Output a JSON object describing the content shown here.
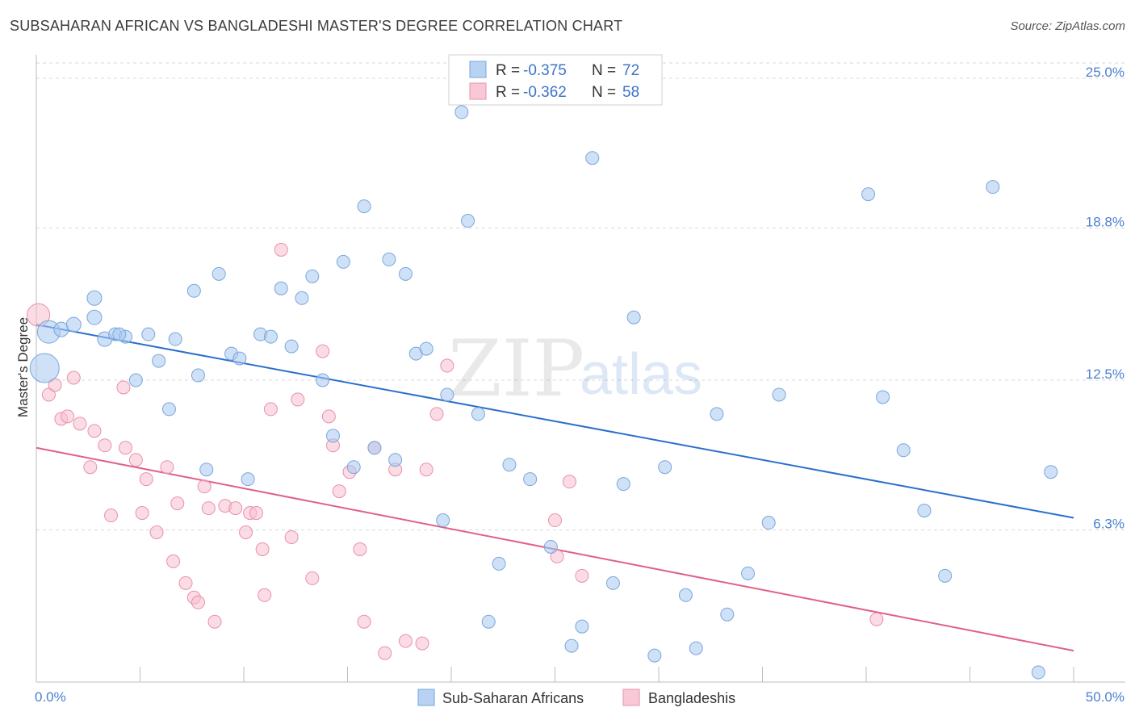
{
  "title": "SUBSAHARAN AFRICAN VS BANGLADESHI MASTER'S DEGREE CORRELATION CHART",
  "source": "Source: ZipAtlas.com",
  "watermark": {
    "zip": "ZIP",
    "atlas": "atlas"
  },
  "legend_top": {
    "rows": [
      {
        "r_label": "R = ",
        "r_value": "-0.375",
        "n_label": "N = ",
        "n_value": "72",
        "color": "#a8c8f0"
      },
      {
        "r_label": "R = ",
        "r_value": "-0.362",
        "n_label": "N = ",
        "n_value": "58",
        "color": "#f8b8cc"
      }
    ]
  },
  "legend_bottom": [
    {
      "label": "Sub-Saharan Africans",
      "color": "#a8c8f0"
    },
    {
      "label": "Bangladeshis",
      "color": "#f8b8cc"
    }
  ],
  "colors": {
    "blue_fill": "#a8c8f0",
    "blue_stroke": "#7aa6dc",
    "blue_line": "#2a6fcc",
    "pink_fill": "#f8c0d0",
    "pink_stroke": "#e890ac",
    "pink_line": "#e0608a",
    "grid": "#d8d8d8",
    "tick_text": "#4a7fd0"
  },
  "chart_data": {
    "type": "scatter",
    "ylabel": "Master's Degree",
    "x_tick_labels": [
      "0.0%",
      "50.0%"
    ],
    "y_tick_labels": [
      "25.0%",
      "18.8%",
      "12.5%",
      "6.3%"
    ],
    "y_ticks": [
      25.0,
      18.8,
      12.5,
      6.3
    ],
    "xlim": [
      0,
      50
    ],
    "ylim": [
      0,
      26
    ],
    "grid": "horizontal dashed",
    "series": [
      {
        "name": "Sub-Saharan Africans",
        "trend": {
          "x": [
            0,
            50
          ],
          "y": [
            14.8,
            6.8
          ]
        },
        "points": [
          [
            0.4,
            13.0,
            18
          ],
          [
            0.6,
            14.5,
            14
          ],
          [
            1.2,
            14.6,
            9
          ],
          [
            1.8,
            14.8,
            9
          ],
          [
            2.8,
            15.1,
            9
          ],
          [
            2.8,
            15.9,
            9
          ],
          [
            3.3,
            14.2,
            9
          ],
          [
            3.8,
            14.4,
            8
          ],
          [
            4.3,
            14.3,
            8
          ],
          [
            4.8,
            12.5,
            8
          ],
          [
            5.4,
            14.4,
            8
          ],
          [
            5.9,
            13.3,
            8
          ],
          [
            6.4,
            11.3,
            8
          ],
          [
            6.7,
            14.2,
            8
          ],
          [
            7.6,
            16.2,
            8
          ],
          [
            7.8,
            12.7,
            8
          ],
          [
            8.2,
            8.8,
            8
          ],
          [
            8.8,
            16.9,
            8
          ],
          [
            9.4,
            13.6,
            8
          ],
          [
            9.8,
            13.4,
            8
          ],
          [
            10.2,
            8.4,
            8
          ],
          [
            10.8,
            14.4,
            8
          ],
          [
            11.3,
            14.3,
            8
          ],
          [
            11.8,
            16.3,
            8
          ],
          [
            12.3,
            13.9,
            8
          ],
          [
            12.8,
            15.9,
            8
          ],
          [
            13.3,
            16.8,
            8
          ],
          [
            13.8,
            12.5,
            8
          ],
          [
            14.3,
            10.2,
            8
          ],
          [
            14.8,
            17.4,
            8
          ],
          [
            15.3,
            8.9,
            8
          ],
          [
            15.8,
            19.7,
            8
          ],
          [
            16.3,
            9.7,
            8
          ],
          [
            17.0,
            17.5,
            8
          ],
          [
            17.3,
            9.2,
            8
          ],
          [
            17.8,
            16.9,
            8
          ],
          [
            18.3,
            13.6,
            8
          ],
          [
            18.8,
            13.8,
            8
          ],
          [
            19.6,
            6.7,
            8
          ],
          [
            19.8,
            11.9,
            8
          ],
          [
            20.5,
            23.6,
            8
          ],
          [
            20.8,
            19.1,
            8
          ],
          [
            21.3,
            11.1,
            8
          ],
          [
            21.8,
            2.5,
            8
          ],
          [
            22.3,
            4.9,
            8
          ],
          [
            22.8,
            9.0,
            8
          ],
          [
            23.8,
            8.4,
            8
          ],
          [
            24.8,
            5.6,
            8
          ],
          [
            25.8,
            1.5,
            8
          ],
          [
            26.3,
            2.3,
            8
          ],
          [
            26.8,
            21.7,
            8
          ],
          [
            27.8,
            4.1,
            8
          ],
          [
            28.3,
            8.2,
            8
          ],
          [
            28.8,
            15.1,
            8
          ],
          [
            29.8,
            1.1,
            8
          ],
          [
            30.3,
            8.9,
            8
          ],
          [
            31.3,
            3.6,
            8
          ],
          [
            31.8,
            1.4,
            8
          ],
          [
            32.8,
            11.1,
            8
          ],
          [
            33.3,
            2.8,
            8
          ],
          [
            34.3,
            4.5,
            8
          ],
          [
            35.3,
            6.6,
            8
          ],
          [
            35.8,
            11.9,
            8
          ],
          [
            40.1,
            20.2,
            8
          ],
          [
            40.8,
            11.8,
            8
          ],
          [
            41.8,
            9.6,
            8
          ],
          [
            42.8,
            7.1,
            8
          ],
          [
            43.8,
            4.4,
            8
          ],
          [
            46.1,
            20.5,
            8
          ],
          [
            48.3,
            0.4,
            8
          ],
          [
            48.9,
            8.7,
            8
          ],
          [
            4.0,
            14.4,
            8
          ]
        ]
      },
      {
        "name": "Bangladeshis",
        "trend": {
          "x": [
            0,
            50
          ],
          "y": [
            9.7,
            1.3
          ]
        },
        "points": [
          [
            0.1,
            15.2,
            14
          ],
          [
            0.6,
            11.9,
            8
          ],
          [
            0.9,
            12.3,
            8
          ],
          [
            1.2,
            10.9,
            8
          ],
          [
            1.5,
            11.0,
            8
          ],
          [
            1.8,
            12.6,
            8
          ],
          [
            2.1,
            10.7,
            8
          ],
          [
            2.6,
            8.9,
            8
          ],
          [
            2.8,
            10.4,
            8
          ],
          [
            3.3,
            9.8,
            8
          ],
          [
            3.6,
            6.9,
            8
          ],
          [
            4.2,
            12.2,
            8
          ],
          [
            4.3,
            9.7,
            8
          ],
          [
            4.8,
            9.2,
            8
          ],
          [
            5.1,
            7.0,
            8
          ],
          [
            5.3,
            8.4,
            8
          ],
          [
            5.8,
            6.2,
            8
          ],
          [
            6.3,
            8.9,
            8
          ],
          [
            6.6,
            5.0,
            8
          ],
          [
            6.8,
            7.4,
            8
          ],
          [
            7.2,
            4.1,
            8
          ],
          [
            7.6,
            3.5,
            8
          ],
          [
            7.8,
            3.3,
            8
          ],
          [
            8.1,
            8.1,
            8
          ],
          [
            8.3,
            7.2,
            8
          ],
          [
            8.6,
            2.5,
            8
          ],
          [
            9.1,
            7.3,
            8
          ],
          [
            9.6,
            7.2,
            8
          ],
          [
            10.1,
            6.2,
            8
          ],
          [
            10.3,
            7.0,
            8
          ],
          [
            10.6,
            7.0,
            8
          ],
          [
            10.9,
            5.5,
            8
          ],
          [
            11.0,
            3.6,
            8
          ],
          [
            11.3,
            11.3,
            8
          ],
          [
            11.8,
            17.9,
            8
          ],
          [
            12.3,
            6.0,
            8
          ],
          [
            12.6,
            11.7,
            8
          ],
          [
            13.3,
            4.3,
            8
          ],
          [
            13.8,
            13.7,
            8
          ],
          [
            14.1,
            11.0,
            8
          ],
          [
            14.3,
            9.8,
            8
          ],
          [
            14.6,
            7.9,
            8
          ],
          [
            15.1,
            8.7,
            8
          ],
          [
            15.6,
            5.5,
            8
          ],
          [
            15.8,
            2.5,
            8
          ],
          [
            16.3,
            9.7,
            8
          ],
          [
            16.8,
            1.2,
            8
          ],
          [
            17.3,
            8.8,
            8
          ],
          [
            17.8,
            1.7,
            8
          ],
          [
            18.6,
            1.6,
            8
          ],
          [
            18.8,
            8.8,
            8
          ],
          [
            19.3,
            11.1,
            8
          ],
          [
            19.8,
            13.1,
            8
          ],
          [
            25.0,
            6.7,
            8
          ],
          [
            25.1,
            5.2,
            8
          ],
          [
            25.7,
            8.3,
            8
          ],
          [
            26.3,
            4.4,
            8
          ],
          [
            40.5,
            2.6,
            8
          ]
        ]
      }
    ]
  }
}
